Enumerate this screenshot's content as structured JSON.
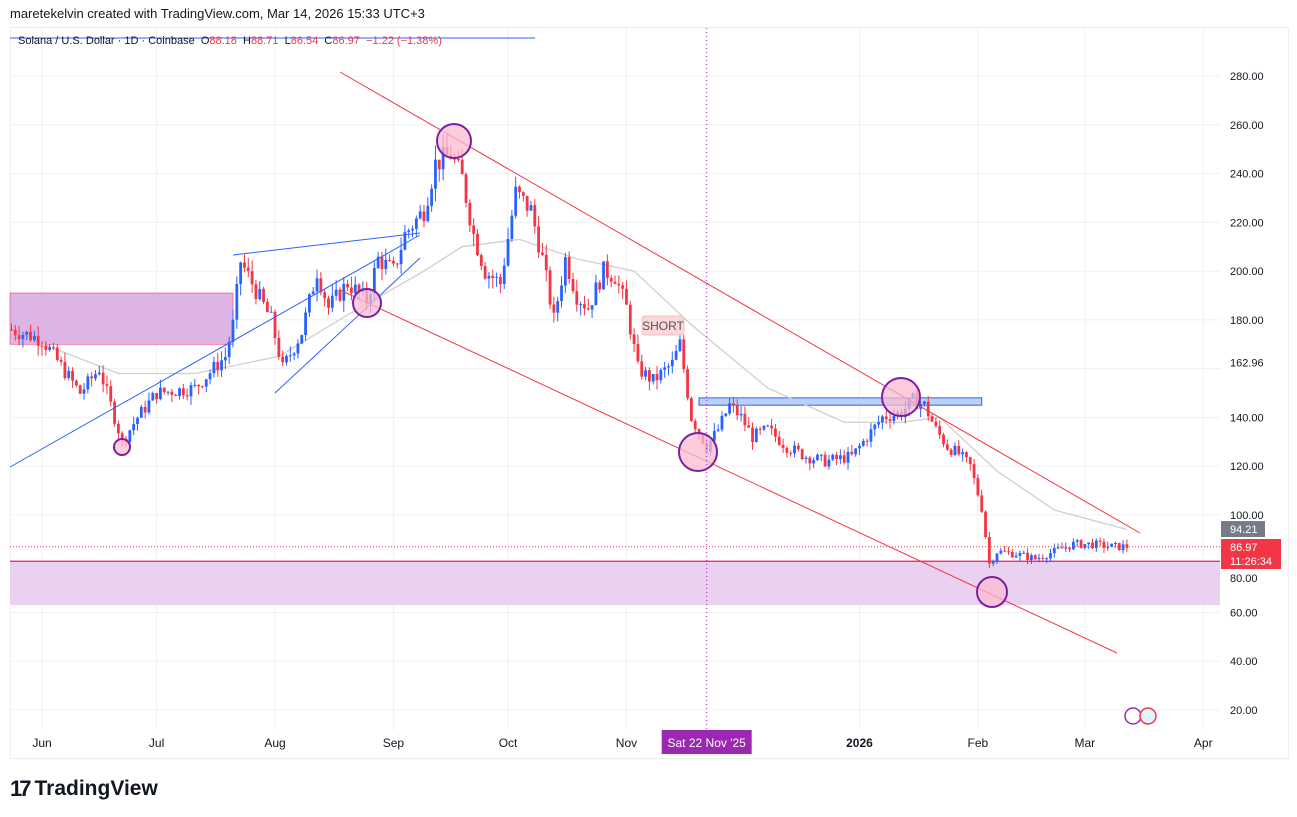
{
  "credit": "maretekelvin created with TradingView.com, Mar 14, 2026 15:33 UTC+3",
  "legend": {
    "symbol": "Solana / U.S. Dollar · 1D · Coinbase",
    "o_label": "O",
    "o": "88.18",
    "h_label": "H",
    "h": "88.71",
    "l_label": "L",
    "l": "86.54",
    "c_label": "C",
    "c": "86.97",
    "change": "−1.22 (−1.38%)"
  },
  "logo": "TradingView",
  "chart_data": {
    "type": "candlestick",
    "title": "Solana / U.S. Dollar · 1D · Coinbase",
    "ylim": [
      12,
      292
    ],
    "y_ticks": [
      20,
      40,
      60,
      80,
      100,
      120,
      140,
      160,
      180,
      200,
      220,
      240,
      260,
      280
    ],
    "y_tick_labels": [
      "20.00",
      "40.00",
      "60.00",
      "80.00",
      "100.00",
      "120.00",
      "140.00",
      "",
      "180.00",
      "200.00",
      "220.00",
      "240.00",
      "260.00",
      "280.00"
    ],
    "x_ticks": [
      {
        "label": "Jun",
        "day": 0
      },
      {
        "label": "Jul",
        "day": 30
      },
      {
        "label": "Aug",
        "day": 61
      },
      {
        "label": "Sep",
        "day": 92
      },
      {
        "label": "Oct",
        "day": 122
      },
      {
        "label": "Nov",
        "day": 153
      },
      {
        "label": "2026",
        "day": 214
      },
      {
        "label": "Feb",
        "day": 245
      },
      {
        "label": "Mar",
        "day": 273
      },
      {
        "label": "Apr",
        "day": 304
      }
    ],
    "x_day_zero": "Jun 1 2025",
    "crosshair": {
      "day": 174,
      "label": "Sat 22 Nov '25"
    },
    "price_path": [
      [
        -8,
        176
      ],
      [
        0,
        172
      ],
      [
        10,
        150
      ],
      [
        15,
        160
      ],
      [
        21,
        130
      ],
      [
        25,
        140
      ],
      [
        30,
        150
      ],
      [
        40,
        152
      ],
      [
        48,
        165
      ],
      [
        50,
        178
      ],
      [
        52,
        204
      ],
      [
        55,
        195
      ],
      [
        60,
        180
      ],
      [
        63,
        160
      ],
      [
        68,
        175
      ],
      [
        72,
        200
      ],
      [
        75,
        185
      ],
      [
        80,
        195
      ],
      [
        85,
        188
      ],
      [
        88,
        205
      ],
      [
        92,
        200
      ],
      [
        95,
        215
      ],
      [
        100,
        225
      ],
      [
        103,
        244
      ],
      [
        107,
        248
      ],
      [
        110,
        238
      ],
      [
        113,
        215
      ],
      [
        116,
        200
      ],
      [
        120,
        195
      ],
      [
        124,
        232
      ],
      [
        128,
        225
      ],
      [
        131,
        205
      ],
      [
        134,
        180
      ],
      [
        137,
        205
      ],
      [
        140,
        190
      ],
      [
        143,
        185
      ],
      [
        147,
        200
      ],
      [
        150,
        198
      ],
      [
        153,
        185
      ],
      [
        156,
        160
      ],
      [
        160,
        155
      ],
      [
        165,
        162
      ],
      [
        167,
        170
      ],
      [
        170,
        140
      ],
      [
        174,
        128
      ],
      [
        177,
        135
      ],
      [
        180,
        145
      ],
      [
        183,
        140
      ],
      [
        186,
        132
      ],
      [
        190,
        135
      ],
      [
        195,
        128
      ],
      [
        200,
        124
      ],
      [
        205,
        122
      ],
      [
        212,
        124
      ],
      [
        215,
        130
      ],
      [
        220,
        140
      ],
      [
        225,
        142
      ],
      [
        228,
        147
      ],
      [
        231,
        145
      ],
      [
        234,
        135
      ],
      [
        237,
        128
      ],
      [
        240,
        125
      ],
      [
        243,
        120
      ],
      [
        246,
        103
      ],
      [
        248,
        80
      ],
      [
        250,
        85
      ],
      [
        255,
        84
      ],
      [
        260,
        82
      ],
      [
        265,
        85
      ],
      [
        270,
        88
      ],
      [
        275,
        88
      ],
      [
        280,
        87
      ],
      [
        284,
        87
      ]
    ],
    "moving_average": [
      [
        -8,
        175
      ],
      [
        20,
        158
      ],
      [
        40,
        158
      ],
      [
        62,
        165
      ],
      [
        80,
        182
      ],
      [
        100,
        200
      ],
      [
        110,
        210
      ],
      [
        125,
        213
      ],
      [
        140,
        205
      ],
      [
        155,
        200
      ],
      [
        170,
        178
      ],
      [
        190,
        152
      ],
      [
        210,
        138
      ],
      [
        225,
        138
      ],
      [
        235,
        140
      ],
      [
        250,
        118
      ],
      [
        265,
        102
      ],
      [
        284,
        94
      ]
    ],
    "last_price": "86.97",
    "last_price_value": 86.97,
    "countdown": "11:26:34",
    "ma_value": "94.21",
    "ma_value_num": 94.21,
    "marker_price": "162.96",
    "marker_price_value": 162.96,
    "annotation": "SHORT",
    "zones": [
      {
        "from": 170,
        "to": 191,
        "day_from": -8,
        "day_to": 50
      },
      {
        "from": 63,
        "to": 81,
        "day_from": -8,
        "day_to": 310
      }
    ],
    "resistance_box": {
      "from": 145,
      "to": 148,
      "day_from": 172,
      "day_to": 246
    }
  },
  "colors": {
    "up": "#2962ff",
    "down": "#f23645",
    "ma": "#cfcfcf",
    "zone": "#e1bee7",
    "crosshair": "#9c27b0"
  }
}
